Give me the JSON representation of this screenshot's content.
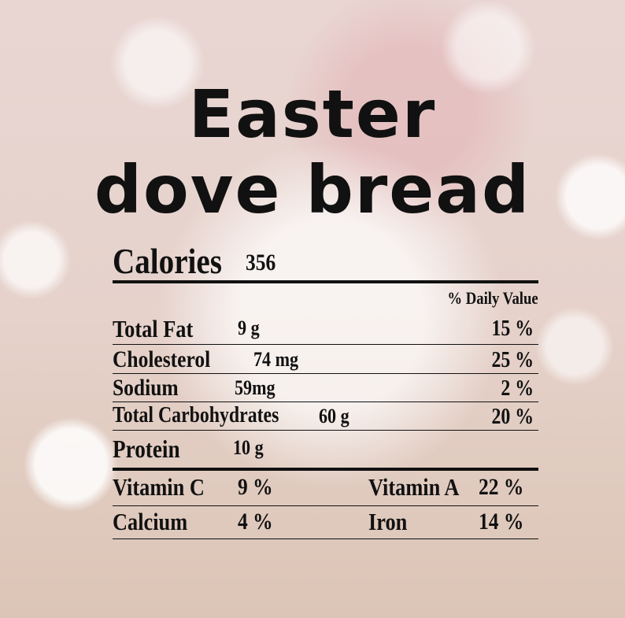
{
  "title": [
    "Easter",
    "dove bread"
  ],
  "calories": {
    "label": "Calories",
    "value": "356"
  },
  "daily_value_header": "% Daily Value",
  "nutrients": [
    {
      "name": "Total Fat",
      "amount": "9 g",
      "daily": "15 %"
    },
    {
      "name": "Cholesterol",
      "amount": "74 mg",
      "daily": "25 %"
    },
    {
      "name": "Sodium",
      "amount": "59mg",
      "daily": "2 %"
    },
    {
      "name": "Total Carbohydrates",
      "amount": "60 g",
      "daily": "20 %"
    },
    {
      "name": "Protein",
      "amount": "10 g"
    }
  ],
  "vitamins": [
    [
      {
        "name": "Vitamin C",
        "value": "9 %"
      },
      {
        "name": "Vitamin A",
        "value": "22 %"
      }
    ],
    [
      {
        "name": "Calcium",
        "value": "4 %"
      },
      {
        "name": "Iron",
        "value": "14 %"
      }
    ]
  ]
}
